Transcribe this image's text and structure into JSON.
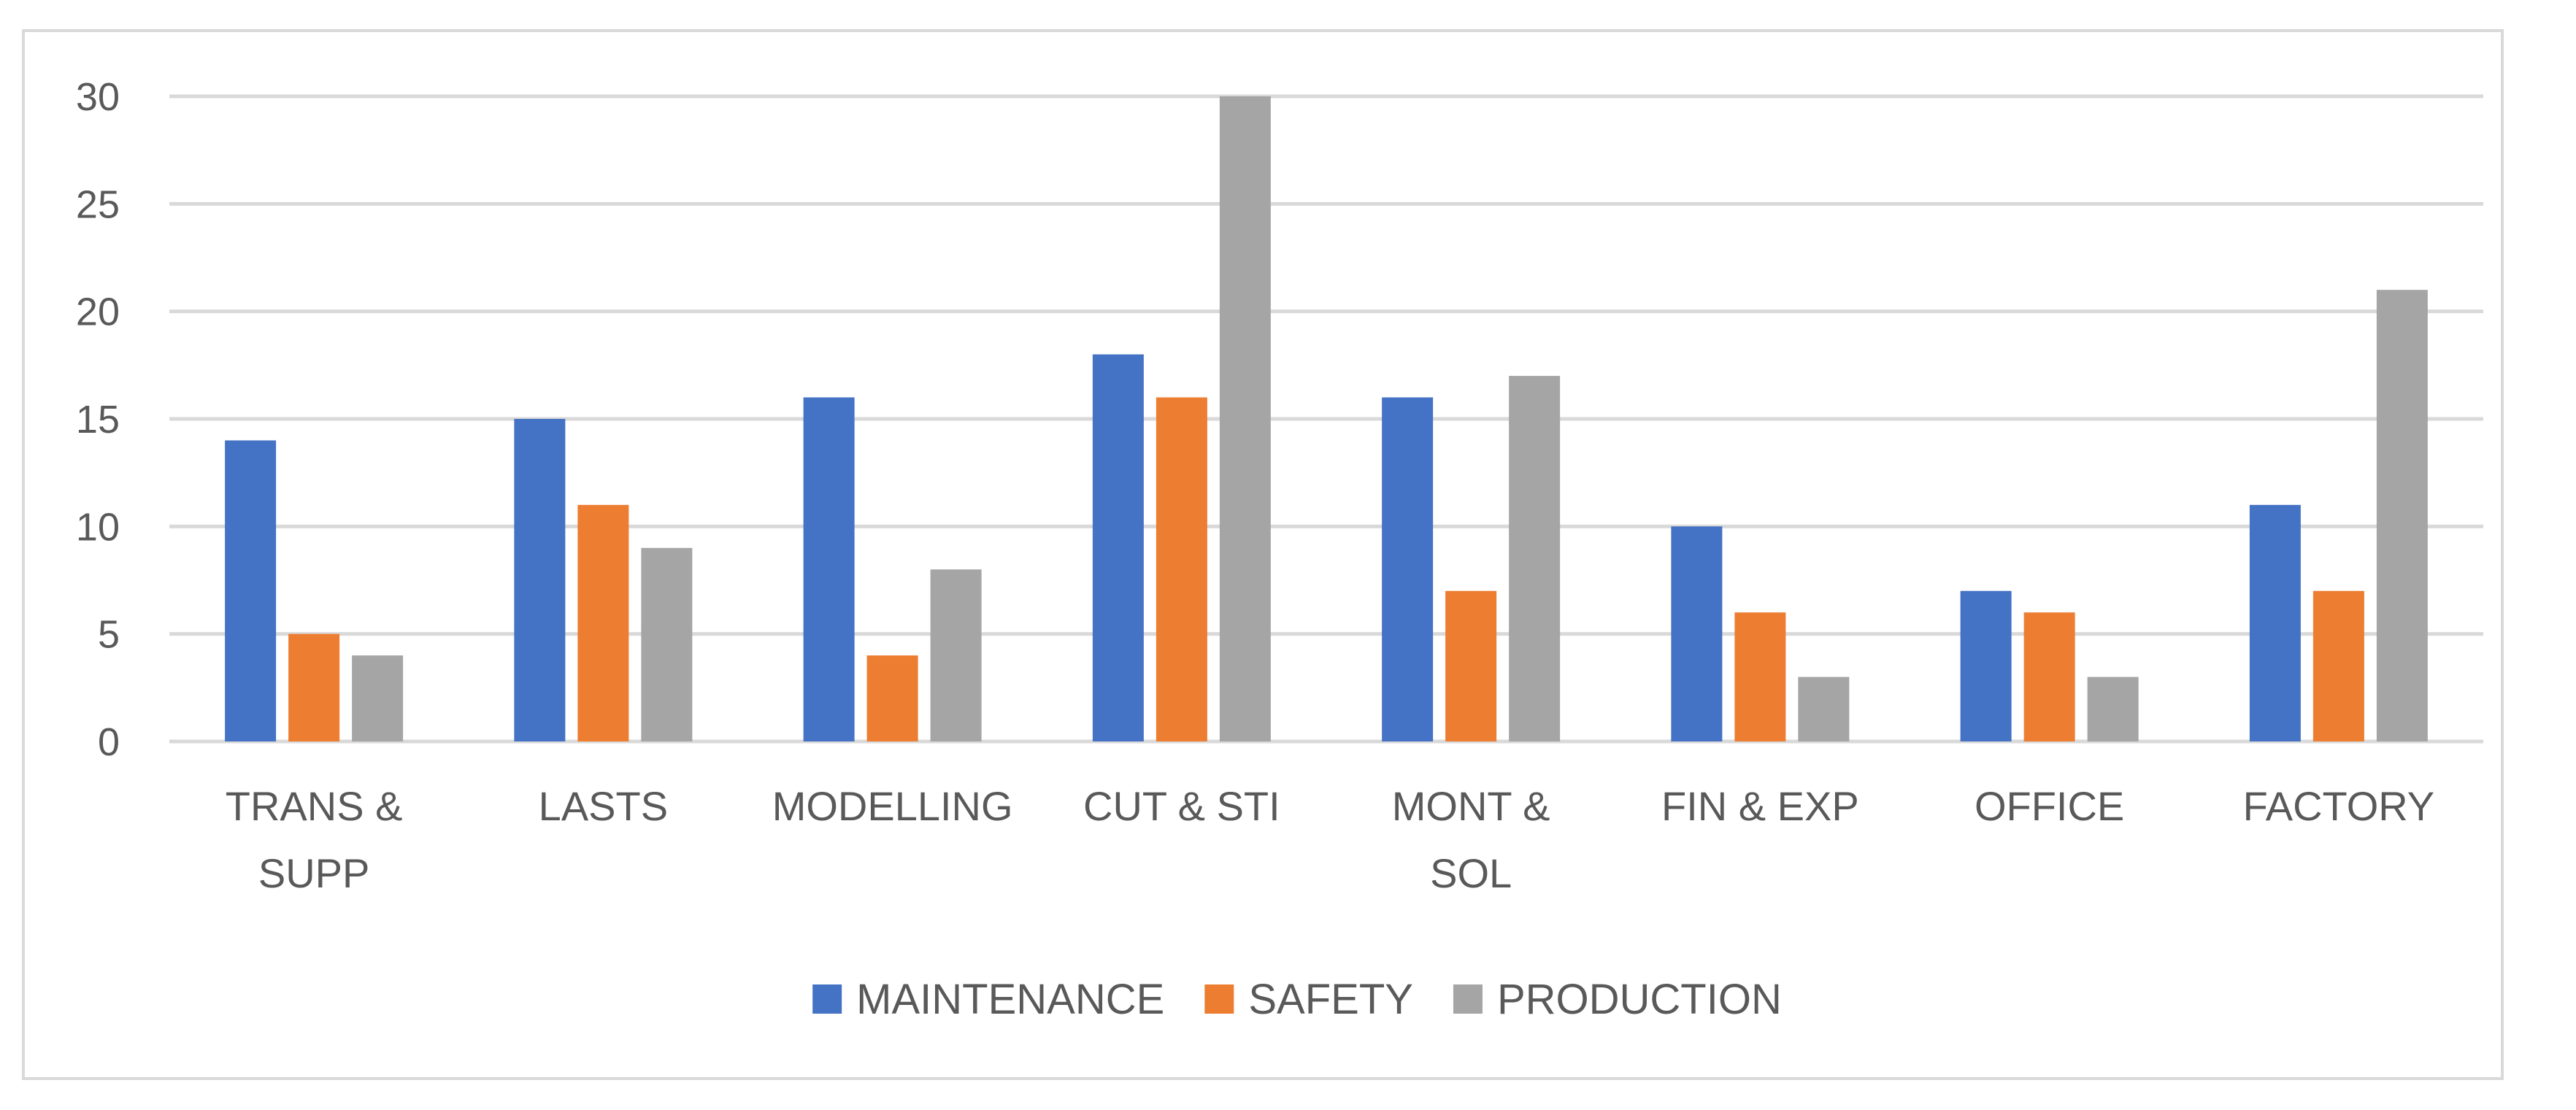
{
  "chart_data": {
    "type": "bar",
    "title": "",
    "xlabel": "",
    "ylabel": "",
    "ylim": [
      0,
      30
    ],
    "yticks": [
      0,
      5,
      10,
      15,
      20,
      25,
      30
    ],
    "grid": true,
    "legend_position": "bottom",
    "categories": [
      [
        "TRANS &",
        "SUPP"
      ],
      [
        "LASTS"
      ],
      [
        "MODELLING"
      ],
      [
        "CUT & STI"
      ],
      [
        "MONT &",
        "SOL"
      ],
      [
        "FIN & EXP"
      ],
      [
        "OFFICE"
      ],
      [
        "FACTORY"
      ]
    ],
    "series": [
      {
        "name": "MAINTENANCE",
        "color": "#4472c4",
        "values": [
          14,
          15,
          16,
          18,
          16,
          10,
          7,
          11
        ]
      },
      {
        "name": "SAFETY",
        "color": "#ed7d31",
        "values": [
          5,
          11,
          4,
          16,
          7,
          6,
          6,
          7
        ]
      },
      {
        "name": "PRODUCTION",
        "color": "#a5a5a5",
        "values": [
          4,
          9,
          8,
          30,
          17,
          3,
          3,
          21
        ]
      }
    ],
    "gridline_color": "#d9d9d9"
  }
}
